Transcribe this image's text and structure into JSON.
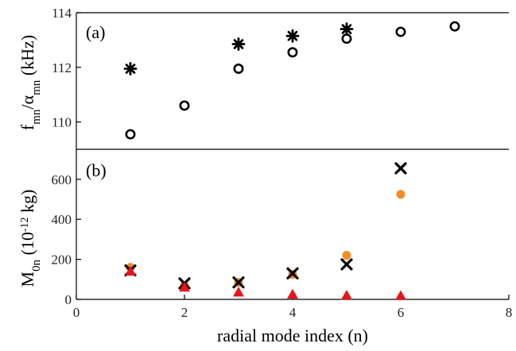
{
  "chart_data": [
    {
      "type": "scatter",
      "panel_label": "(a)",
      "ylabel": {
        "main": "f",
        "sub1": "mn",
        "mid": "/α",
        "sub2": "mn",
        "tail": " (kHz)"
      },
      "xlim": [
        0,
        8
      ],
      "ylim": [
        109,
        114
      ],
      "yticks": [
        "110",
        "112",
        "114"
      ],
      "series": [
        {
          "marker": "asterisk",
          "color": "#000000",
          "x": [
            1,
            3,
            4,
            5
          ],
          "y": [
            111.95,
            112.85,
            113.15,
            113.4
          ]
        },
        {
          "marker": "open-circle",
          "color": "#000000",
          "x": [
            1,
            2,
            3,
            4,
            5,
            6,
            7
          ],
          "y": [
            109.55,
            110.6,
            111.95,
            112.55,
            113.05,
            113.3,
            113.5
          ]
        }
      ]
    },
    {
      "type": "scatter",
      "panel_label": "(b)",
      "ylabel": {
        "main": "M",
        "sub1": "0n",
        "mid": " (10",
        "sup": "-12",
        "tail": " kg)"
      },
      "xlim": [
        0,
        8
      ],
      "ylim": [
        0,
        750
      ],
      "xticks": [
        "0",
        "2",
        "4",
        "6",
        "8"
      ],
      "yticks": [
        "0",
        "200",
        "400",
        "600"
      ],
      "xlabel": "radial mode index (n)",
      "series": [
        {
          "marker": "filled-circle",
          "color": "#f28c28",
          "x": [
            1,
            2,
            3,
            4,
            5,
            6
          ],
          "y": [
            160,
            70,
            85,
            125,
            220,
            525
          ]
        },
        {
          "marker": "cross",
          "color": "#000000",
          "x": [
            1,
            2,
            3,
            4,
            5,
            6
          ],
          "y": [
            145,
            80,
            85,
            130,
            175,
            655
          ]
        },
        {
          "marker": "filled-triangle",
          "color": "#e8141c",
          "x": [
            1,
            2,
            3,
            4,
            5,
            6
          ],
          "y": [
            140,
            60,
            35,
            25,
            20,
            18
          ]
        }
      ]
    }
  ]
}
